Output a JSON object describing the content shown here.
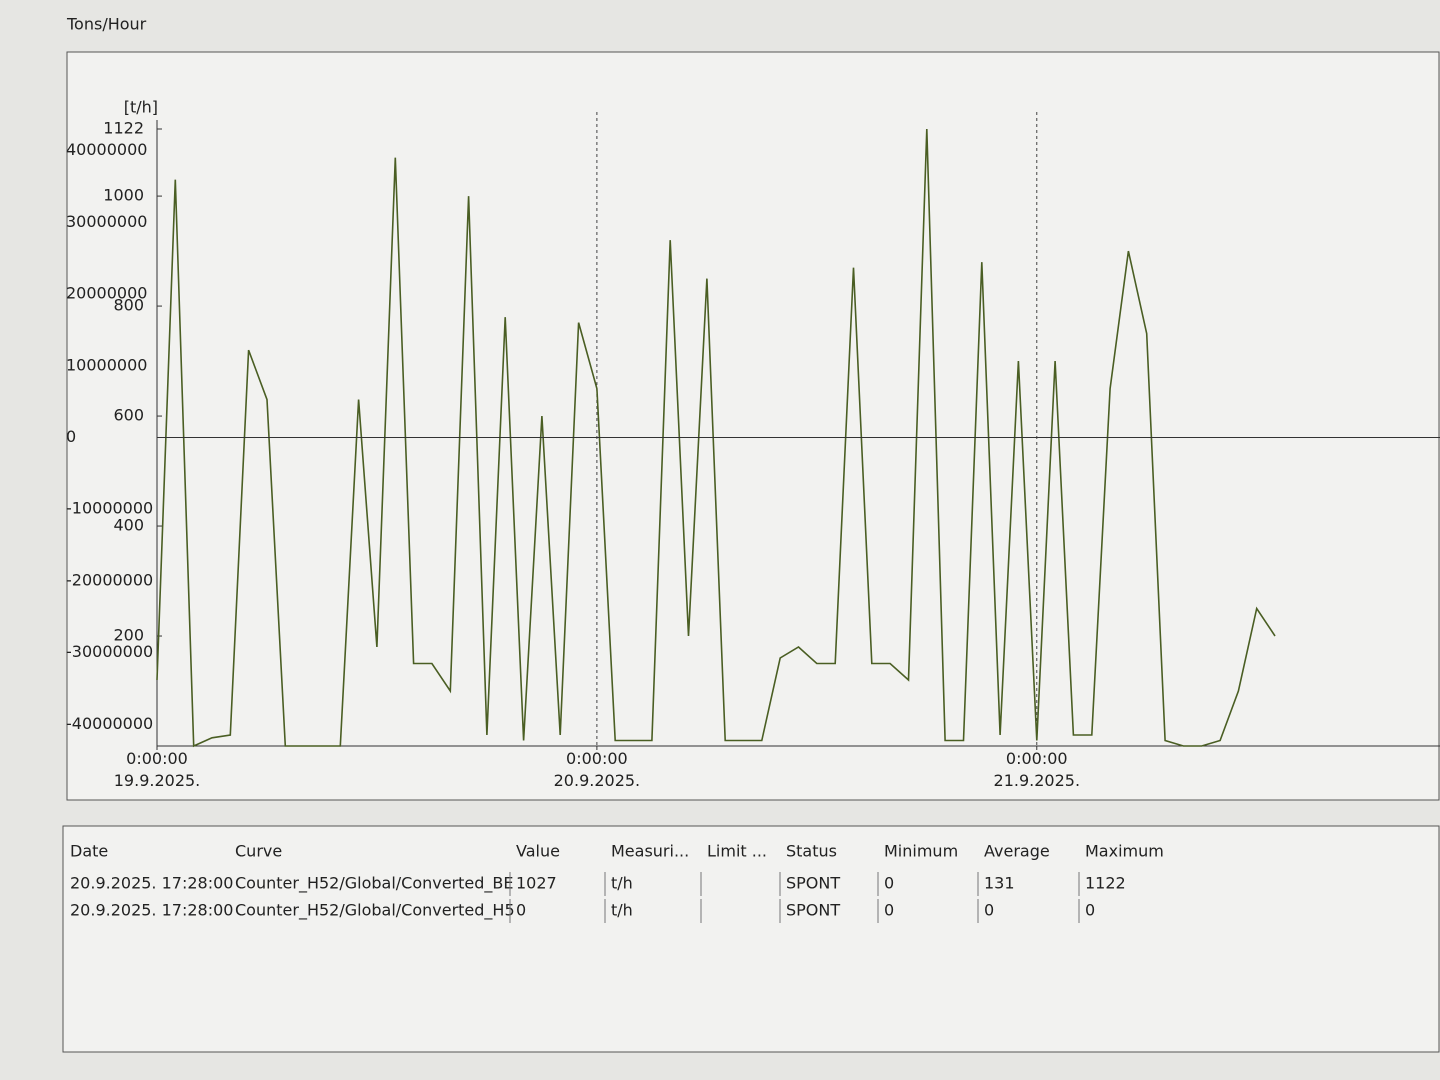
{
  "chart_data": {
    "type": "line",
    "title": "Tons/Hour",
    "y_label": "[t/h]",
    "xlim": [
      "2025-09-19T00:00",
      "2025-09-21T22:00"
    ],
    "xticks": [
      {
        "value": "2025-09-19T00:00",
        "label": "0:00:00\n19.9.2025."
      },
      {
        "value": "2025-09-20T00:00",
        "label": "0:00:00\n20.9.2025."
      },
      {
        "value": "2025-09-21T00:00",
        "label": "0:00:00\n21.9.2025."
      }
    ],
    "ylim": [
      0,
      1122
    ],
    "yticks": [
      200,
      400,
      600,
      800,
      1000,
      1122
    ],
    "y2lim": [
      -43000000,
      43000000
    ],
    "y2ticks": [
      -40000000,
      -30000000,
      -20000000,
      -10000000,
      0,
      10000000,
      20000000,
      30000000,
      40000000
    ],
    "grid": true,
    "series": [
      {
        "color": "#4a5e23",
        "x": [
          "2025-09-19T00:00",
          "2025-09-19T01:00",
          "2025-09-19T02:00",
          "2025-09-19T03:00",
          "2025-09-19T04:00",
          "2025-09-19T05:00",
          "2025-09-19T06:00",
          "2025-09-19T07:00",
          "2025-09-19T08:00",
          "2025-09-19T09:00",
          "2025-09-19T10:00",
          "2025-09-19T11:00",
          "2025-09-19T12:00",
          "2025-09-19T13:00",
          "2025-09-19T14:00",
          "2025-09-19T15:00",
          "2025-09-19T16:00",
          "2025-09-19T17:00",
          "2025-09-19T18:00",
          "2025-09-19T19:00",
          "2025-09-19T20:00",
          "2025-09-19T21:00",
          "2025-09-19T22:00",
          "2025-09-19T23:00",
          "2025-09-20T00:00",
          "2025-09-20T01:00",
          "2025-09-20T02:00",
          "2025-09-20T03:00",
          "2025-09-20T04:00",
          "2025-09-20T05:00",
          "2025-09-20T06:00",
          "2025-09-20T07:00",
          "2025-09-20T08:00",
          "2025-09-20T09:00",
          "2025-09-20T10:00",
          "2025-09-20T11:00",
          "2025-09-20T12:00",
          "2025-09-20T13:00",
          "2025-09-20T14:00",
          "2025-09-20T15:00",
          "2025-09-20T16:00",
          "2025-09-20T17:00",
          "2025-09-20T18:00",
          "2025-09-20T19:00",
          "2025-09-20T20:00",
          "2025-09-20T21:00",
          "2025-09-20T22:00",
          "2025-09-20T23:00",
          "2025-09-21T00:00",
          "2025-09-21T01:00",
          "2025-09-21T02:00",
          "2025-09-21T03:00",
          "2025-09-21T04:00",
          "2025-09-21T05:00",
          "2025-09-21T06:00",
          "2025-09-21T07:00",
          "2025-09-21T08:00",
          "2025-09-21T09:00",
          "2025-09-21T10:00",
          "2025-09-21T11:00",
          "2025-09-21T12:00",
          "2025-09-21T13:00"
        ],
        "values": [
          120,
          1030,
          0,
          15,
          20,
          720,
          630,
          0,
          0,
          0,
          0,
          630,
          180,
          1070,
          150,
          150,
          100,
          1000,
          20,
          780,
          10,
          600,
          20,
          770,
          650,
          10,
          10,
          10,
          920,
          200,
          850,
          10,
          10,
          10,
          160,
          180,
          150,
          150,
          870,
          150,
          150,
          120,
          1122,
          10,
          10,
          880,
          20,
          700,
          10,
          700,
          20,
          20,
          650,
          900,
          750,
          10,
          0,
          0,
          10,
          100,
          250,
          200
        ]
      },
      {
        "color": "#333333",
        "axis": "y2",
        "x": [
          "2025-09-19T00:00",
          "2025-09-21T22:00"
        ],
        "values": [
          0,
          0
        ]
      }
    ]
  },
  "table": {
    "header": [
      "Date",
      "Curve",
      "Value",
      "Measuri...",
      "Limit ...",
      "Status",
      "Minimum",
      "Average",
      "Maximum"
    ],
    "rows": [
      [
        "20.9.2025. 17:28:00",
        "Counter_H52/Global/Converted_BE",
        "1027",
        "t/h",
        null,
        "SPONT",
        "0",
        "131",
        "1122"
      ],
      [
        "20.9.2025. 17:28:00",
        "Counter_H52/Global/Converted_H5",
        "0",
        "t/h",
        null,
        "SPONT",
        "0",
        "0",
        "0"
      ]
    ]
  }
}
